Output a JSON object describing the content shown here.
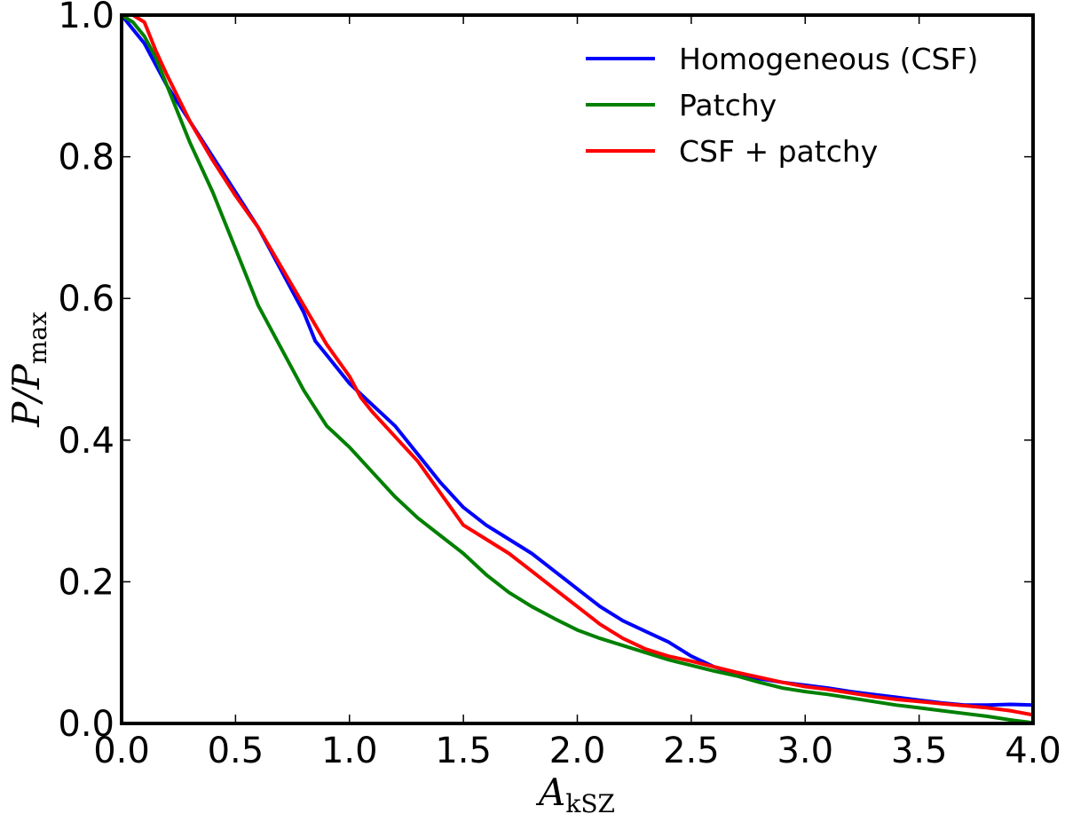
{
  "chart_data": {
    "type": "line",
    "title": "",
    "xlabel": "A",
    "xlabel_sub": "kSZ",
    "ylabel": "P/P",
    "ylabel_sub": "max",
    "xlim": [
      0.0,
      4.0
    ],
    "ylim": [
      0.0,
      1.0
    ],
    "xticks": [
      0.0,
      0.5,
      1.0,
      1.5,
      2.0,
      2.5,
      3.0,
      3.5,
      4.0
    ],
    "xtick_labels": [
      "0.0",
      "0.5",
      "1.0",
      "1.5",
      "2.0",
      "2.5",
      "3.0",
      "3.5",
      "4.0"
    ],
    "yticks": [
      0.0,
      0.2,
      0.4,
      0.6,
      0.8,
      1.0
    ],
    "ytick_labels": [
      "0.0",
      "0.2",
      "0.4",
      "0.6",
      "0.8",
      "1.0"
    ],
    "grid": false,
    "legend_position": "top-right",
    "series": [
      {
        "name": "Homogeneous (CSF)",
        "color": "#0000ff",
        "x": [
          0.0,
          0.05,
          0.1,
          0.15,
          0.2,
          0.3,
          0.4,
          0.5,
          0.6,
          0.7,
          0.8,
          0.85,
          0.9,
          1.0,
          1.1,
          1.2,
          1.25,
          1.3,
          1.4,
          1.5,
          1.6,
          1.7,
          1.8,
          1.9,
          2.0,
          2.1,
          2.2,
          2.3,
          2.4,
          2.5,
          2.6,
          2.7,
          2.8,
          2.9,
          3.0,
          3.1,
          3.2,
          3.3,
          3.4,
          3.5,
          3.6,
          3.7,
          3.8,
          3.9,
          4.0
        ],
        "y": [
          1.0,
          0.98,
          0.96,
          0.93,
          0.9,
          0.85,
          0.8,
          0.75,
          0.7,
          0.64,
          0.58,
          0.54,
          0.52,
          0.48,
          0.45,
          0.42,
          0.4,
          0.38,
          0.34,
          0.305,
          0.28,
          0.26,
          0.24,
          0.215,
          0.19,
          0.165,
          0.145,
          0.13,
          0.115,
          0.095,
          0.08,
          0.07,
          0.063,
          0.058,
          0.054,
          0.05,
          0.045,
          0.041,
          0.037,
          0.033,
          0.029,
          0.026,
          0.026,
          0.027,
          0.026
        ]
      },
      {
        "name": "Patchy",
        "color": "#008000",
        "x": [
          0.0,
          0.05,
          0.1,
          0.15,
          0.2,
          0.3,
          0.4,
          0.5,
          0.6,
          0.7,
          0.8,
          0.9,
          1.0,
          1.1,
          1.2,
          1.3,
          1.4,
          1.5,
          1.6,
          1.7,
          1.8,
          1.9,
          2.0,
          2.1,
          2.2,
          2.3,
          2.4,
          2.5,
          2.6,
          2.7,
          2.8,
          2.9,
          3.0,
          3.1,
          3.2,
          3.3,
          3.4,
          3.5,
          3.6,
          3.7,
          3.8,
          3.9,
          4.0
        ],
        "y": [
          1.0,
          0.99,
          0.97,
          0.94,
          0.9,
          0.82,
          0.75,
          0.67,
          0.59,
          0.53,
          0.47,
          0.42,
          0.39,
          0.355,
          0.32,
          0.29,
          0.265,
          0.24,
          0.21,
          0.185,
          0.165,
          0.148,
          0.132,
          0.12,
          0.11,
          0.1,
          0.09,
          0.082,
          0.074,
          0.067,
          0.058,
          0.05,
          0.045,
          0.041,
          0.036,
          0.031,
          0.026,
          0.022,
          0.018,
          0.014,
          0.01,
          0.005,
          0.001
        ]
      },
      {
        "name": "CSF + patchy",
        "color": "#ff0000",
        "x": [
          0.0,
          0.05,
          0.1,
          0.15,
          0.2,
          0.3,
          0.4,
          0.5,
          0.6,
          0.7,
          0.8,
          0.9,
          1.0,
          1.05,
          1.1,
          1.2,
          1.3,
          1.4,
          1.5,
          1.6,
          1.7,
          1.8,
          1.9,
          2.0,
          2.1,
          2.2,
          2.3,
          2.4,
          2.5,
          2.6,
          2.7,
          2.8,
          2.9,
          3.0,
          3.1,
          3.2,
          3.3,
          3.4,
          3.5,
          3.6,
          3.7,
          3.8,
          3.9,
          4.0
        ],
        "y": [
          1.0,
          1.0,
          0.99,
          0.95,
          0.915,
          0.85,
          0.795,
          0.745,
          0.7,
          0.645,
          0.59,
          0.535,
          0.49,
          0.46,
          0.44,
          0.405,
          0.37,
          0.325,
          0.28,
          0.26,
          0.24,
          0.215,
          0.19,
          0.165,
          0.14,
          0.12,
          0.105,
          0.095,
          0.088,
          0.08,
          0.072,
          0.065,
          0.058,
          0.052,
          0.048,
          0.043,
          0.038,
          0.034,
          0.031,
          0.028,
          0.025,
          0.022,
          0.018,
          0.012
        ]
      }
    ]
  }
}
